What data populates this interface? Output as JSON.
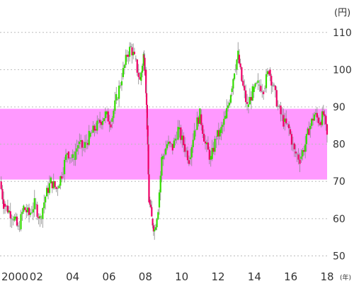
{
  "chart_data": {
    "type": "candlestick",
    "y_unit_label": "(円)",
    "x_unit_label": "(年)",
    "ylim": [
      48,
      113
    ],
    "xlim": [
      2000.0,
      2018.0
    ],
    "y_ticks": [
      50,
      60,
      70,
      80,
      90,
      100,
      110
    ],
    "x_ticks": [
      {
        "value": 2000,
        "label": "2000"
      },
      {
        "value": 2002,
        "label": "02"
      },
      {
        "value": 2004,
        "label": "04"
      },
      {
        "value": 2006,
        "label": "06"
      },
      {
        "value": 2008,
        "label": "08"
      },
      {
        "value": 2010,
        "label": "10"
      },
      {
        "value": 2012,
        "label": "12"
      },
      {
        "value": 2014,
        "label": "14"
      },
      {
        "value": 2016,
        "label": "16"
      },
      {
        "value": 2018,
        "label": "18"
      }
    ],
    "band": {
      "from": 70.5,
      "to": 89.5,
      "color": "#ff99ff"
    },
    "grid": "dotted-horizontal",
    "colors": {
      "up": "#33dd00",
      "down": "#ee0066",
      "neutral": "#999999",
      "grid": "#bbbbbb"
    },
    "series": [
      [
        2000.0,
        70.0
      ],
      [
        2000.2,
        64.0
      ],
      [
        2000.5,
        62.0
      ],
      [
        2000.8,
        60.0
      ],
      [
        2001.0,
        57.0
      ],
      [
        2001.3,
        63.0
      ],
      [
        2001.6,
        61.0
      ],
      [
        2001.9,
        64.0
      ],
      [
        2002.2,
        60.0
      ],
      [
        2002.5,
        66.0
      ],
      [
        2002.8,
        70.0
      ],
      [
        2003.1,
        68.0
      ],
      [
        2003.4,
        72.0
      ],
      [
        2003.7,
        78.0
      ],
      [
        2004.0,
        76.0
      ],
      [
        2004.3,
        80.0
      ],
      [
        2004.6,
        79.0
      ],
      [
        2004.9,
        82.0
      ],
      [
        2005.2,
        84.0
      ],
      [
        2005.5,
        86.0
      ],
      [
        2005.8,
        88.0
      ],
      [
        2006.1,
        86.0
      ],
      [
        2006.4,
        92.0
      ],
      [
        2006.7,
        98.0
      ],
      [
        2007.0,
        104.0
      ],
      [
        2007.2,
        106.0
      ],
      [
        2007.4,
        103.0
      ],
      [
        2007.7,
        97.0
      ],
      [
        2007.9,
        104.0
      ],
      [
        2008.0,
        100.0
      ],
      [
        2008.1,
        85.0
      ],
      [
        2008.2,
        65.0
      ],
      [
        2008.35,
        60.0
      ],
      [
        2008.5,
        57.0
      ],
      [
        2008.7,
        63.0
      ],
      [
        2008.9,
        76.0
      ],
      [
        2009.2,
        80.0
      ],
      [
        2009.5,
        79.0
      ],
      [
        2009.8,
        84.0
      ],
      [
        2010.1,
        80.0
      ],
      [
        2010.4,
        76.0
      ],
      [
        2010.7,
        84.0
      ],
      [
        2011.0,
        88.0
      ],
      [
        2011.3,
        80.0
      ],
      [
        2011.6,
        76.0
      ],
      [
        2011.9,
        82.0
      ],
      [
        2012.1,
        83.0
      ],
      [
        2012.4,
        87.0
      ],
      [
        2012.7,
        94.0
      ],
      [
        2012.9,
        100.0
      ],
      [
        2013.1,
        104.0
      ],
      [
        2013.3,
        97.0
      ],
      [
        2013.6,
        90.0
      ],
      [
        2013.9,
        94.0
      ],
      [
        2014.2,
        96.0
      ],
      [
        2014.5,
        95.0
      ],
      [
        2014.8,
        100.0
      ],
      [
        2015.0,
        96.0
      ],
      [
        2015.3,
        90.0
      ],
      [
        2015.6,
        86.0
      ],
      [
        2015.9,
        84.0
      ],
      [
        2016.2,
        78.0
      ],
      [
        2016.5,
        76.0
      ],
      [
        2016.8,
        80.0
      ],
      [
        2017.0,
        84.0
      ],
      [
        2017.3,
        88.0
      ],
      [
        2017.6,
        86.0
      ],
      [
        2017.8,
        88.0
      ],
      [
        2018.0,
        82.0
      ]
    ]
  }
}
